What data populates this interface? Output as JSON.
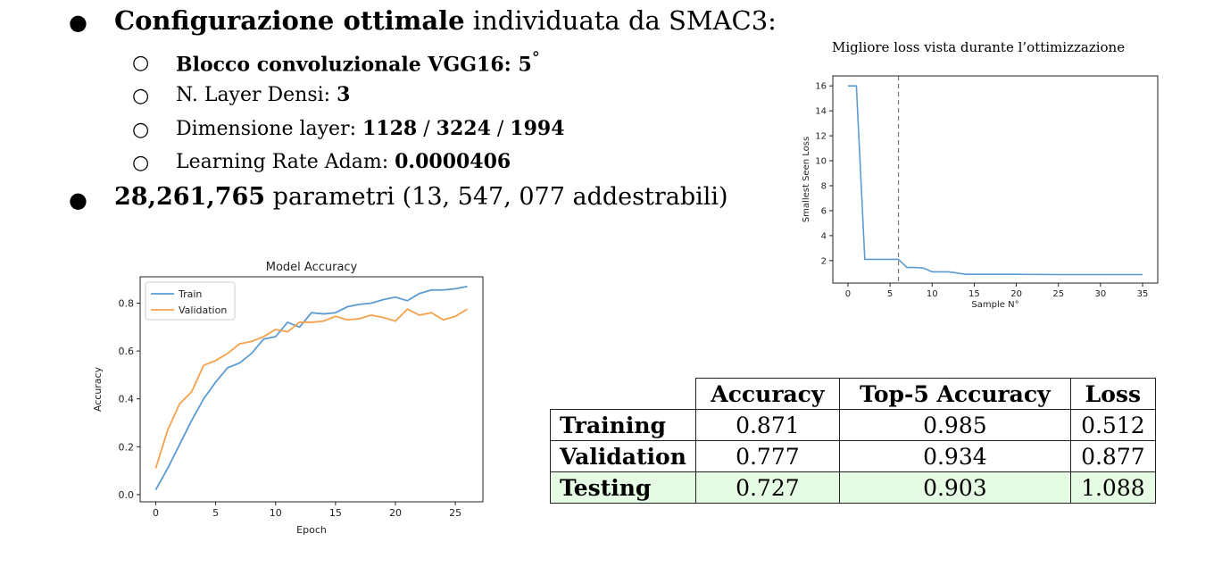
{
  "bullets": {
    "b1_bold": "Configurazione ottimale",
    "b1_rest": " individuata da SMAC3:",
    "sub1_bold": "Blocco convoluzionale VGG16: 5",
    "sub1_sup": "°",
    "sub2_text": "N. Layer Densi: ",
    "sub2_bold": "3",
    "sub3_text": "Dimensione layer: ",
    "sub3_bold1": "1128",
    "sub3_sep1": " / ",
    "sub3_bold2": "3224",
    "sub3_sep2": " / ",
    "sub3_bold3": "1994",
    "sub4_text": "Learning Rate Adam: ",
    "sub4_bold": "0.0000406",
    "b2_bold": "28,261,765",
    "b2_rest": " parametri (13, 547, 077 addestrabili)",
    "bullet_char": "●",
    "sub_char": "○"
  },
  "loss_chart_title": "Migliore loss vista durante l’ottimizzazione",
  "chart_data": [
    {
      "type": "line",
      "title": "Model Accuracy",
      "xlabel": "Epoch",
      "ylabel": "Accuracy",
      "xlim": [
        -1.3,
        27.3
      ],
      "ylim": [
        -0.03,
        0.91
      ],
      "xticks": [
        0,
        5,
        10,
        15,
        20,
        25
      ],
      "yticks": [
        0.0,
        0.2,
        0.4,
        0.6,
        0.8
      ],
      "ytick_labels": [
        "0.0",
        "0.2",
        "0.4",
        "0.6",
        "0.8"
      ],
      "legend": "top-left",
      "grid": false,
      "x": [
        0,
        1,
        2,
        3,
        4,
        5,
        6,
        7,
        8,
        9,
        10,
        11,
        12,
        13,
        14,
        15,
        16,
        17,
        18,
        19,
        20,
        21,
        22,
        23,
        24,
        25,
        26
      ],
      "series": [
        {
          "name": "Train",
          "color": "#5c9bd1",
          "values": [
            0.02,
            0.11,
            0.21,
            0.31,
            0.4,
            0.47,
            0.53,
            0.55,
            0.59,
            0.65,
            0.66,
            0.72,
            0.7,
            0.76,
            0.755,
            0.76,
            0.785,
            0.795,
            0.8,
            0.815,
            0.825,
            0.81,
            0.84,
            0.855,
            0.855,
            0.86,
            0.87
          ]
        },
        {
          "name": "Validation",
          "color": "#f6a24c",
          "values": [
            0.11,
            0.27,
            0.38,
            0.43,
            0.54,
            0.56,
            0.59,
            0.63,
            0.64,
            0.66,
            0.69,
            0.68,
            0.72,
            0.72,
            0.725,
            0.745,
            0.73,
            0.735,
            0.75,
            0.74,
            0.725,
            0.775,
            0.75,
            0.76,
            0.73,
            0.745,
            0.775
          ]
        }
      ]
    },
    {
      "type": "line",
      "title": "",
      "xlabel": "Sample N°",
      "ylabel": "Smallest Seen Loss",
      "xlim": [
        -1.8,
        36.8
      ],
      "ylim": [
        0.2,
        16.8
      ],
      "xticks": [
        0,
        5,
        10,
        15,
        20,
        25,
        30,
        35
      ],
      "yticks": [
        2,
        4,
        6,
        8,
        10,
        12,
        14,
        16
      ],
      "vline": 6,
      "grid": false,
      "series": [
        {
          "name": "",
          "color": "#5c9bd1",
          "x": [
            0,
            1,
            2,
            3,
            4,
            5,
            6,
            7,
            8,
            9,
            10,
            11,
            12,
            13,
            14,
            15,
            20,
            25,
            30,
            35
          ],
          "values": [
            16.0,
            16.0,
            2.1,
            2.1,
            2.1,
            2.1,
            2.1,
            1.45,
            1.45,
            1.4,
            1.1,
            1.1,
            1.1,
            1.0,
            0.9,
            0.9,
            0.9,
            0.88,
            0.88,
            0.88
          ]
        }
      ]
    }
  ],
  "table": {
    "headers": [
      "",
      "Accuracy",
      "Top-5 Accuracy",
      "Loss"
    ],
    "rows": [
      {
        "label": "Training",
        "values": [
          "0.871",
          "0.985",
          "0.512"
        ]
      },
      {
        "label": "Validation",
        "values": [
          "0.777",
          "0.934",
          "0.877"
        ]
      },
      {
        "label": "Testing",
        "values": [
          "0.727",
          "0.903",
          "1.088"
        ]
      }
    ],
    "highlight_color": "#e6fbe3"
  }
}
